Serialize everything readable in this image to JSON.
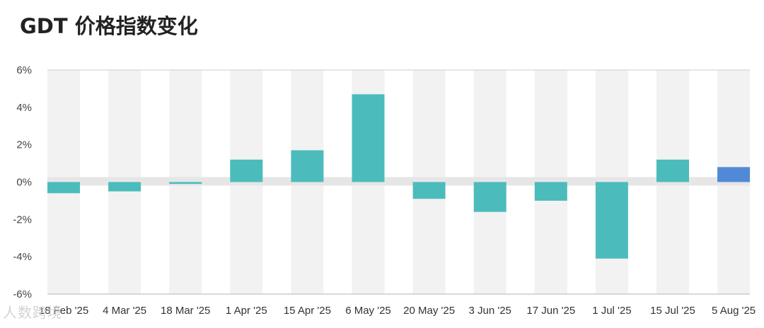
{
  "chart_data": {
    "type": "bar",
    "title": "GDT 价格指数变化",
    "categories": [
      "18 Feb '25",
      "4 Mar '25",
      "18 Mar '25",
      "1 Apr '25",
      "15 Apr '25",
      "6 May '25",
      "20 May '25",
      "3 Jun '25",
      "17 Jun '25",
      "1 Jul '25",
      "15 Jul '25",
      "5 Aug '25"
    ],
    "values": [
      -0.6,
      -0.5,
      -0.1,
      1.2,
      1.7,
      4.7,
      -0.9,
      -1.6,
      -1.0,
      -4.1,
      1.2,
      0.8
    ],
    "highlight_index": 11,
    "ylim": [
      -6,
      6
    ],
    "yticks": [
      6,
      4,
      2,
      0,
      -2,
      -4,
      -6
    ],
    "ytick_labels": [
      "6%",
      "4%",
      "2%",
      "0%",
      "-2%",
      "-4%",
      "-6%"
    ],
    "xlabel": "",
    "ylabel": "",
    "colors": {
      "bar": "#4bbcbb",
      "highlight": "#5189d6",
      "band": "#f2f2f2",
      "zero_band": "#e6e6e6",
      "axis": "#cccccc"
    }
  },
  "watermark": "人数跨境"
}
